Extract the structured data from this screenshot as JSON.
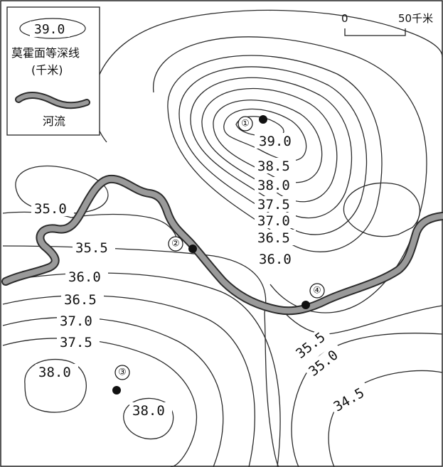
{
  "legend": {
    "sample_value": "39.0",
    "contour_title": "莫霍面等深线",
    "contour_unit": "(千米)",
    "river_label": "河流"
  },
  "scale": {
    "start": "0",
    "end": "50千米"
  },
  "contour_labels": {
    "c39_0_top": "39.0",
    "c38_5": "38.5",
    "c38_0_top": "38.0",
    "c37_5_top": "37.5",
    "c37_0_top": "37.0",
    "c36_5_top": "36.5",
    "c36_0_top": "36.0",
    "c35_0_left": "35.0",
    "c35_5_left": "35.5",
    "c36_0_left": "36.0",
    "c36_5_left": "36.5",
    "c37_0_left": "37.0",
    "c37_5_left": "37.5",
    "c38_0_a": "38.0",
    "c38_0_b": "38.0",
    "c35_5_right": "35.5",
    "c35_0_right": "35.0",
    "c34_5": "34.5"
  },
  "points": {
    "p1": "①",
    "p2": "②",
    "p3": "③",
    "p4": "④"
  }
}
